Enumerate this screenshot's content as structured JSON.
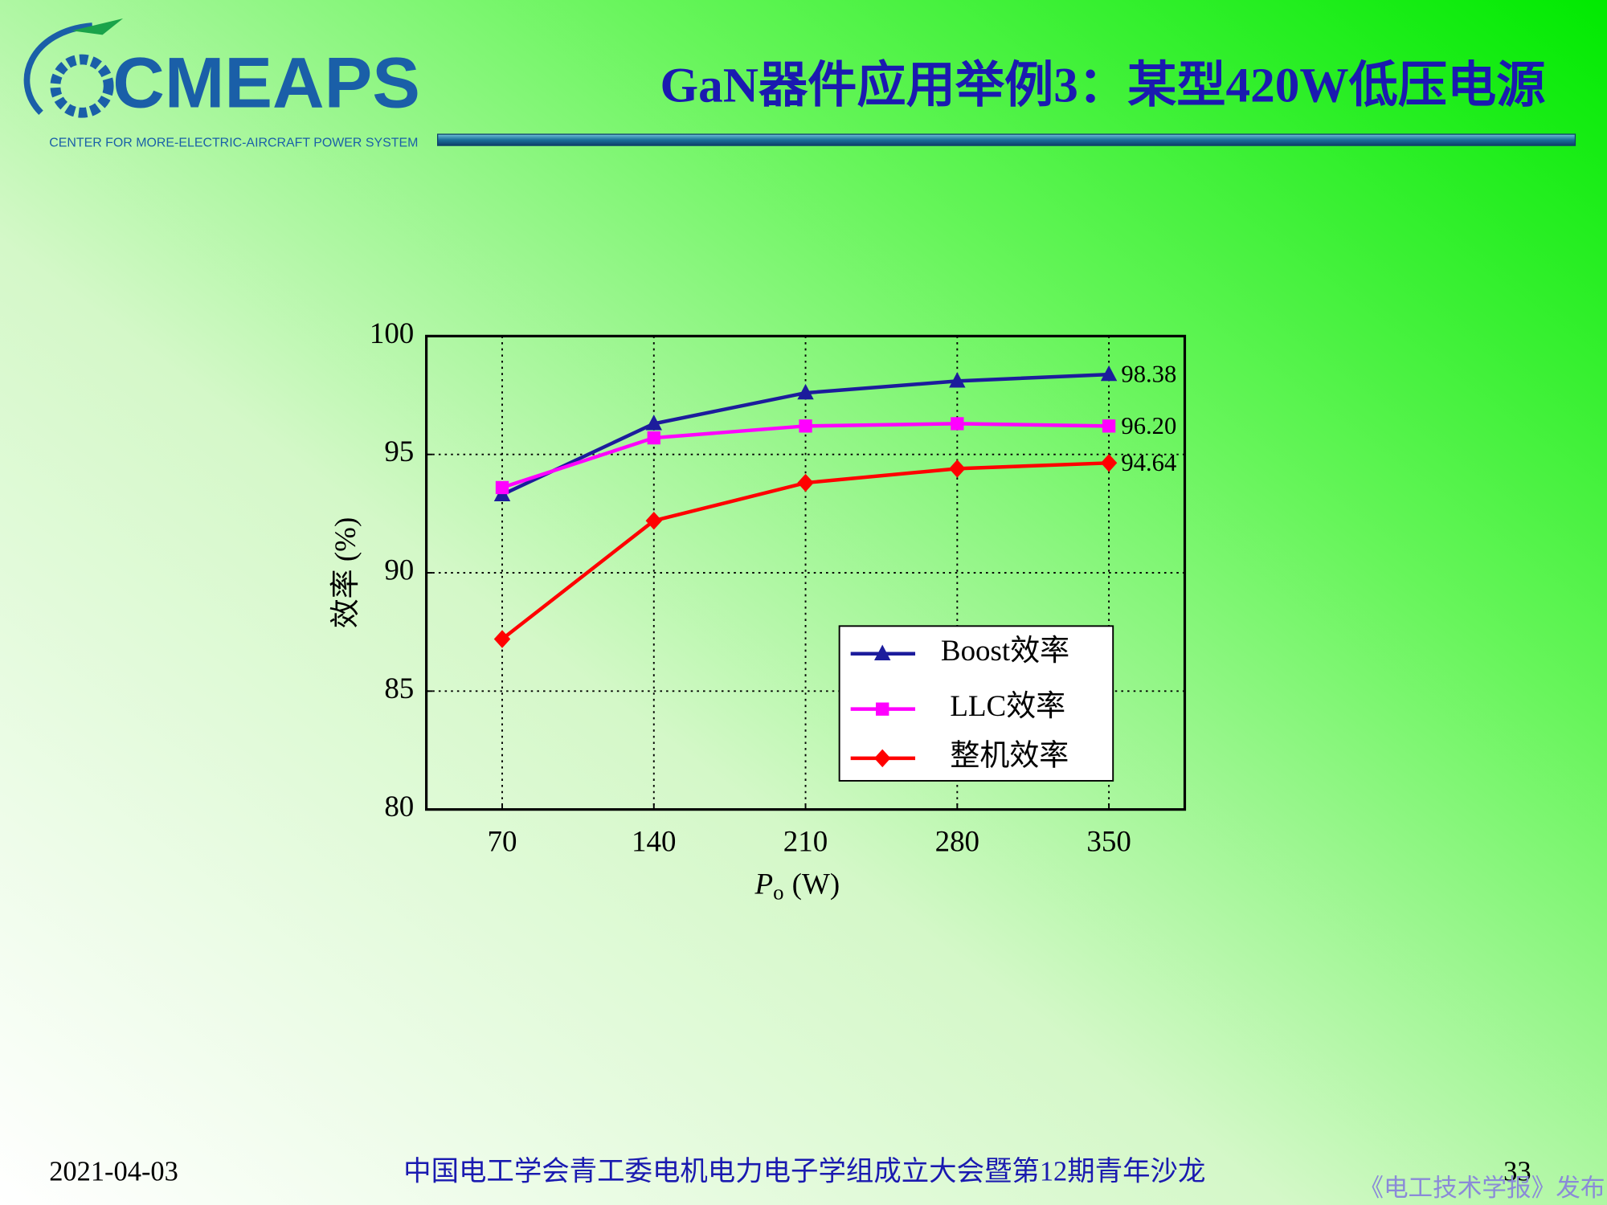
{
  "logo": {
    "name": "CMEAPS",
    "subtitle": "CENTER FOR  MORE-ELECTRIC-AIRCRAFT POWER SYSTEM"
  },
  "header": {
    "title": "GaN器件应用举例3：某型420W低压电源"
  },
  "chart_data": {
    "type": "line",
    "ylabel": "效率 (%)",
    "xlabel": {
      "symbol": "P",
      "subscript": "o",
      "unit": "(W)"
    },
    "x": [
      70,
      140,
      210,
      280,
      350
    ],
    "xlim": [
      35,
      385
    ],
    "xticks": [
      70,
      140,
      210,
      280,
      350
    ],
    "ylim": [
      80,
      100
    ],
    "yticks": [
      80,
      85,
      90,
      95,
      100
    ],
    "grid": true,
    "legend": "lower right",
    "series": [
      {
        "name": "Boost效率",
        "color": "#1c1c9c",
        "marker": "triangle",
        "values": [
          93.3,
          96.3,
          97.6,
          98.1,
          98.38
        ],
        "value_labels": [
          null,
          null,
          null,
          null,
          "98.38"
        ]
      },
      {
        "name": "LLC效率",
        "color": "#ff00ff",
        "marker": "square",
        "values": [
          93.6,
          95.7,
          96.2,
          96.3,
          96.2
        ],
        "value_labels": [
          null,
          null,
          null,
          null,
          "96.20"
        ]
      },
      {
        "name": "整机效率",
        "color": "#ff0000",
        "marker": "diamond",
        "values": [
          87.2,
          92.2,
          93.8,
          94.4,
          94.64
        ],
        "value_labels": [
          null,
          null,
          null,
          null,
          "94.64"
        ]
      }
    ]
  },
  "footer": {
    "date": "2021-04-03",
    "event": "中国电工学会青工委电机电力电子学组成立大会暨第12期青年沙龙",
    "page": "33",
    "watermark": "《电工技术学报》发布"
  }
}
